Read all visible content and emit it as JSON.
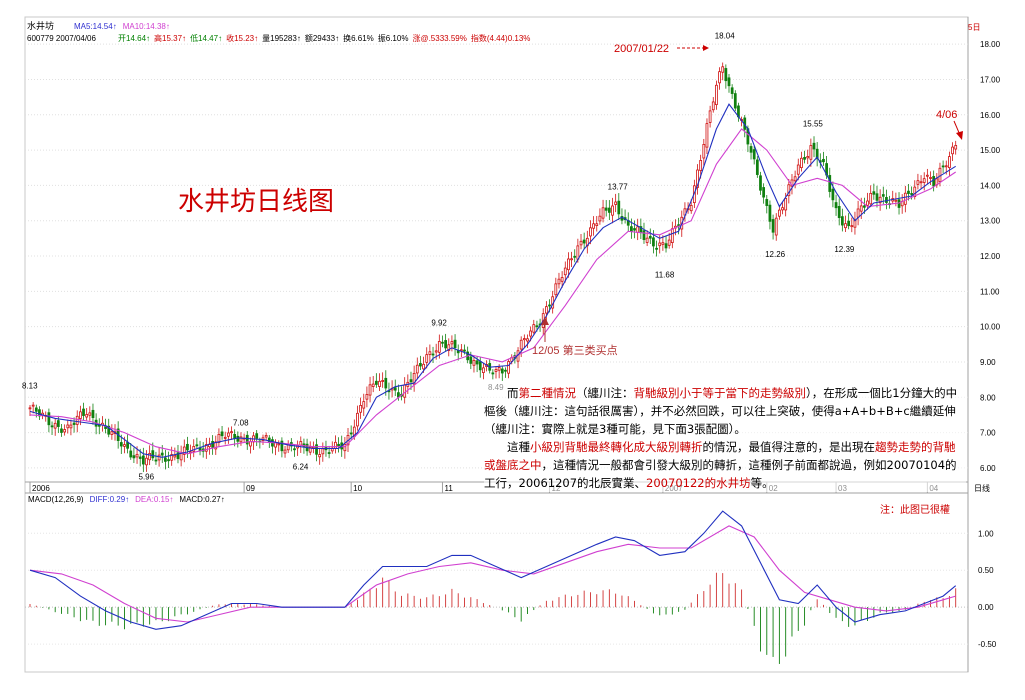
{
  "header": {
    "stock_name": "水井坊",
    "code_date": "600779 2007/04/06",
    "ma_labels": [
      {
        "text": "MA5:14.54↑",
        "color": "#3030d0"
      },
      {
        "text": "MA10:14.38↑",
        "color": "#d040d0"
      }
    ],
    "quote": [
      {
        "text": "开14.64↑",
        "color": "#008000"
      },
      {
        "text": "高15.37↑",
        "color": "#cc0000"
      },
      {
        "text": "低14.47↑",
        "color": "#008000"
      },
      {
        "text": "收15.23↑",
        "color": "#cc0000"
      },
      {
        "text": "量195283↑",
        "color": "#000000"
      },
      {
        "text": "额29433↑",
        "color": "#000000"
      },
      {
        "text": "换6.61%",
        "color": "#000000"
      },
      {
        "text": "振6.10%",
        "color": "#000000"
      },
      {
        "text": "涨@.5333.59%",
        "color": "#cc0000"
      },
      {
        "text": "指数(4.44)0.13%",
        "color": "#cc0000"
      }
    ],
    "corner_label": "5日"
  },
  "title": "水井坊日线图",
  "annotations": {
    "peak_date": "2007/01/22",
    "last_date": "4/06",
    "buy_point": "12/05 第三类买点",
    "macd_note": "注：此图已很權"
  },
  "chart_data": [
    {
      "type": "candlestick",
      "ylim": [
        5.6,
        18.4
      ],
      "yticks": [
        "6.00",
        "7.00",
        "8.00",
        "9.00",
        "10.00",
        "11.00",
        "12.00",
        "13.00",
        "14.00",
        "15.00",
        "16.00",
        "17.00",
        "18.00"
      ],
      "x_labels": [
        {
          "label": "2006",
          "day": 0
        },
        {
          "label": "09",
          "day": 68
        },
        {
          "label": "10",
          "day": 102
        },
        {
          "label": "11",
          "day": 131
        },
        {
          "label": "12",
          "day": 165
        },
        {
          "label": "2007",
          "day": 201
        },
        {
          "label": "02",
          "day": 234
        },
        {
          "label": "03",
          "day": 256
        },
        {
          "label": "04",
          "day": 285
        },
        {
          "label": "日线",
          "day": 296
        }
      ],
      "price_labels": [
        {
          "text": "8.13",
          "day": 0,
          "value": 8.13
        },
        {
          "text": "7.08",
          "day": 67,
          "value": 7.08
        },
        {
          "text": "5.96",
          "day": 37,
          "value": 5.96
        },
        {
          "text": "6.24",
          "day": 86,
          "value": 6.24
        },
        {
          "text": "9.92",
          "day": 130,
          "value": 9.92
        },
        {
          "text": "8.49",
          "day": 148,
          "value": 8.49
        },
        {
          "text": "13.77",
          "day": 186,
          "value": 13.77
        },
        {
          "text": "11.68",
          "day": 201,
          "value": 11.68
        },
        {
          "text": "18.04",
          "day": 220,
          "value": 18.04
        },
        {
          "text": "12.26",
          "day": 236,
          "value": 12.26
        },
        {
          "text": "15.55",
          "day": 248,
          "value": 15.55
        },
        {
          "text": "12.39",
          "day": 258,
          "value": 12.39
        }
      ],
      "close_path": [
        [
          0,
          7.7
        ],
        [
          6,
          7.3
        ],
        [
          12,
          7.1
        ],
        [
          18,
          7.6
        ],
        [
          24,
          7.1
        ],
        [
          30,
          6.6
        ],
        [
          36,
          6.2
        ],
        [
          42,
          6.3
        ],
        [
          48,
          6.4
        ],
        [
          55,
          6.6
        ],
        [
          62,
          6.9
        ],
        [
          68,
          6.85
        ],
        [
          75,
          6.75
        ],
        [
          82,
          6.6
        ],
        [
          88,
          6.55
        ],
        [
          94,
          6.5
        ],
        [
          100,
          6.6
        ],
        [
          103,
          7.3
        ],
        [
          106,
          8.0
        ],
        [
          110,
          8.4
        ],
        [
          114,
          8.3
        ],
        [
          118,
          8.1
        ],
        [
          122,
          8.6
        ],
        [
          126,
          9.2
        ],
        [
          130,
          9.5
        ],
        [
          134,
          9.4
        ],
        [
          138,
          9.3
        ],
        [
          142,
          8.9
        ],
        [
          146,
          8.7
        ],
        [
          150,
          8.8
        ],
        [
          154,
          9.2
        ],
        [
          158,
          9.7
        ],
        [
          162,
          10.2
        ],
        [
          166,
          10.9
        ],
        [
          170,
          11.6
        ],
        [
          174,
          12.3
        ],
        [
          178,
          12.7
        ],
        [
          182,
          13.2
        ],
        [
          186,
          13.5
        ],
        [
          190,
          12.8
        ],
        [
          194,
          12.6
        ],
        [
          198,
          12.4
        ],
        [
          202,
          12.3
        ],
        [
          206,
          12.9
        ],
        [
          210,
          13.6
        ],
        [
          214,
          15.2
        ],
        [
          218,
          16.8
        ],
        [
          220,
          17.4
        ],
        [
          224,
          16.3
        ],
        [
          228,
          15.2
        ],
        [
          232,
          14.0
        ],
        [
          236,
          12.8
        ],
        [
          240,
          13.6
        ],
        [
          244,
          14.6
        ],
        [
          248,
          15.1
        ],
        [
          252,
          14.5
        ],
        [
          256,
          13.3
        ],
        [
          260,
          12.8
        ],
        [
          264,
          13.3
        ],
        [
          268,
          13.8
        ],
        [
          272,
          13.6
        ],
        [
          276,
          13.4
        ],
        [
          280,
          13.9
        ],
        [
          284,
          14.3
        ],
        [
          287,
          14.0
        ],
        [
          290,
          14.5
        ],
        [
          294,
          15.23
        ]
      ],
      "ma5_path": [
        [
          0,
          7.6
        ],
        [
          8,
          7.4
        ],
        [
          16,
          7.3
        ],
        [
          24,
          7.2
        ],
        [
          30,
          6.8
        ],
        [
          36,
          6.4
        ],
        [
          42,
          6.3
        ],
        [
          50,
          6.45
        ],
        [
          58,
          6.7
        ],
        [
          66,
          6.85
        ],
        [
          74,
          6.8
        ],
        [
          82,
          6.65
        ],
        [
          90,
          6.55
        ],
        [
          98,
          6.55
        ],
        [
          104,
          7.0
        ],
        [
          110,
          8.0
        ],
        [
          116,
          8.3
        ],
        [
          122,
          8.4
        ],
        [
          128,
          9.1
        ],
        [
          134,
          9.4
        ],
        [
          140,
          9.2
        ],
        [
          146,
          8.85
        ],
        [
          152,
          8.9
        ],
        [
          158,
          9.5
        ],
        [
          164,
          10.3
        ],
        [
          170,
          11.3
        ],
        [
          176,
          12.2
        ],
        [
          182,
          12.8
        ],
        [
          188,
          13.1
        ],
        [
          194,
          12.8
        ],
        [
          200,
          12.5
        ],
        [
          206,
          12.7
        ],
        [
          212,
          14.0
        ],
        [
          218,
          15.6
        ],
        [
          222,
          16.3
        ],
        [
          228,
          15.6
        ],
        [
          234,
          14.2
        ],
        [
          238,
          13.4
        ],
        [
          244,
          14.2
        ],
        [
          250,
          14.8
        ],
        [
          256,
          13.8
        ],
        [
          262,
          13.0
        ],
        [
          268,
          13.5
        ],
        [
          274,
          13.6
        ],
        [
          280,
          13.7
        ],
        [
          286,
          14.1
        ],
        [
          294,
          14.54
        ]
      ],
      "ma10_path": [
        [
          0,
          7.5
        ],
        [
          10,
          7.45
        ],
        [
          20,
          7.3
        ],
        [
          30,
          7.0
        ],
        [
          40,
          6.6
        ],
        [
          50,
          6.4
        ],
        [
          60,
          6.6
        ],
        [
          70,
          6.75
        ],
        [
          80,
          6.7
        ],
        [
          90,
          6.6
        ],
        [
          100,
          6.6
        ],
        [
          110,
          7.5
        ],
        [
          120,
          8.2
        ],
        [
          130,
          8.9
        ],
        [
          140,
          9.2
        ],
        [
          150,
          9.0
        ],
        [
          160,
          9.4
        ],
        [
          170,
          10.6
        ],
        [
          180,
          11.9
        ],
        [
          190,
          12.7
        ],
        [
          200,
          12.6
        ],
        [
          210,
          13.0
        ],
        [
          218,
          14.6
        ],
        [
          226,
          15.6
        ],
        [
          234,
          15.0
        ],
        [
          242,
          14.0
        ],
        [
          250,
          14.2
        ],
        [
          258,
          14.0
        ],
        [
          266,
          13.4
        ],
        [
          276,
          13.5
        ],
        [
          286,
          13.9
        ],
        [
          294,
          14.38
        ]
      ]
    },
    {
      "type": "macd",
      "title_parts": [
        {
          "text": "MACD(12,26,9)",
          "color": "#000000"
        },
        {
          "text": "DIFF:0.29↑",
          "color": "#3030d0"
        },
        {
          "text": "DEA:0.15↑",
          "color": "#d040d0"
        },
        {
          "text": "MACD:0.27↑",
          "color": "#000000"
        }
      ],
      "ylim": [
        -0.85,
        1.45
      ],
      "yticks": [
        "-0.50",
        "0.00",
        "0.50",
        "1.00"
      ],
      "diff_path": [
        [
          0,
          0.5
        ],
        [
          8,
          0.4
        ],
        [
          16,
          0.15
        ],
        [
          24,
          -0.05
        ],
        [
          32,
          -0.2
        ],
        [
          40,
          -0.3
        ],
        [
          48,
          -0.25
        ],
        [
          56,
          -0.1
        ],
        [
          64,
          0.05
        ],
        [
          72,
          0.05
        ],
        [
          80,
          0.0
        ],
        [
          90,
          0.0
        ],
        [
          100,
          0.0
        ],
        [
          106,
          0.3
        ],
        [
          112,
          0.55
        ],
        [
          118,
          0.55
        ],
        [
          126,
          0.55
        ],
        [
          134,
          0.7
        ],
        [
          140,
          0.7
        ],
        [
          148,
          0.55
        ],
        [
          156,
          0.4
        ],
        [
          164,
          0.55
        ],
        [
          172,
          0.7
        ],
        [
          180,
          0.85
        ],
        [
          186,
          0.95
        ],
        [
          192,
          0.9
        ],
        [
          200,
          0.7
        ],
        [
          208,
          0.75
        ],
        [
          214,
          1.0
        ],
        [
          220,
          1.3
        ],
        [
          226,
          1.1
        ],
        [
          232,
          0.6
        ],
        [
          238,
          0.1
        ],
        [
          244,
          0.05
        ],
        [
          250,
          0.3
        ],
        [
          256,
          0.0
        ],
        [
          262,
          -0.2
        ],
        [
          270,
          -0.1
        ],
        [
          278,
          -0.05
        ],
        [
          284,
          0.05
        ],
        [
          290,
          0.15
        ],
        [
          294,
          0.29
        ]
      ],
      "dea_path": [
        [
          0,
          0.5
        ],
        [
          10,
          0.45
        ],
        [
          20,
          0.3
        ],
        [
          30,
          0.05
        ],
        [
          40,
          -0.15
        ],
        [
          50,
          -0.2
        ],
        [
          60,
          -0.1
        ],
        [
          70,
          0.0
        ],
        [
          80,
          0.0
        ],
        [
          90,
          0.0
        ],
        [
          100,
          0.0
        ],
        [
          110,
          0.3
        ],
        [
          120,
          0.45
        ],
        [
          130,
          0.55
        ],
        [
          140,
          0.6
        ],
        [
          150,
          0.5
        ],
        [
          160,
          0.45
        ],
        [
          170,
          0.6
        ],
        [
          180,
          0.75
        ],
        [
          190,
          0.85
        ],
        [
          200,
          0.8
        ],
        [
          210,
          0.8
        ],
        [
          222,
          1.1
        ],
        [
          230,
          0.95
        ],
        [
          238,
          0.5
        ],
        [
          246,
          0.2
        ],
        [
          254,
          0.1
        ],
        [
          262,
          0.0
        ],
        [
          272,
          -0.05
        ],
        [
          282,
          0.0
        ],
        [
          290,
          0.1
        ],
        [
          294,
          0.15
        ]
      ],
      "hist_path": [
        [
          0,
          0.05
        ],
        [
          10,
          -0.1
        ],
        [
          20,
          -0.25
        ],
        [
          30,
          -0.3
        ],
        [
          40,
          -0.25
        ],
        [
          50,
          -0.1
        ],
        [
          60,
          0.05
        ],
        [
          70,
          0.05
        ],
        [
          80,
          0.0
        ],
        [
          90,
          0.0
        ],
        [
          100,
          0.0
        ],
        [
          106,
          0.2
        ],
        [
          112,
          0.45
        ],
        [
          118,
          0.2
        ],
        [
          126,
          0.15
        ],
        [
          134,
          0.25
        ],
        [
          140,
          0.15
        ],
        [
          148,
          0.0
        ],
        [
          156,
          -0.2
        ],
        [
          164,
          0.1
        ],
        [
          172,
          0.2
        ],
        [
          180,
          0.25
        ],
        [
          186,
          0.25
        ],
        [
          192,
          0.1
        ],
        [
          200,
          -0.15
        ],
        [
          208,
          -0.05
        ],
        [
          214,
          0.3
        ],
        [
          220,
          0.55
        ],
        [
          226,
          0.25
        ],
        [
          232,
          -0.6
        ],
        [
          236,
          -0.95
        ],
        [
          240,
          -0.7
        ],
        [
          246,
          -0.25
        ],
        [
          250,
          0.15
        ],
        [
          256,
          -0.2
        ],
        [
          262,
          -0.3
        ],
        [
          270,
          -0.1
        ],
        [
          278,
          -0.05
        ],
        [
          284,
          0.1
        ],
        [
          290,
          0.15
        ],
        [
          294,
          0.27
        ]
      ]
    }
  ],
  "text_box": {
    "paragraph1": [
      {
        "t": "　　而",
        "c": "#000000"
      },
      {
        "t": "第二種情況",
        "c": "#cc0000"
      },
      {
        "t": "（纏川注：",
        "c": "#000000"
      },
      {
        "t": "背馳級別小于等于當下的走勢級別",
        "c": "#cc0000"
      },
      {
        "t": "），在形成一個比1分鐘大的中樞後（纏川注：這句話很厲害），并不必然回跌，可以往上突破，使得a+A+b+B+c繼續延伸（纏川注：實際上就是3種可能，見下面3張配圖）。",
        "c": "#000000"
      }
    ],
    "paragraph2": [
      {
        "t": "　　這種",
        "c": "#000000"
      },
      {
        "t": "小級別背馳最終轉化成大級別轉折",
        "c": "#cc0000"
      },
      {
        "t": "的情況，最值得注意的，是出現在",
        "c": "#000000"
      },
      {
        "t": "趨勢走勢的背馳或盤底之中",
        "c": "#cc0000"
      },
      {
        "t": "，這種情況一般都會引發大級別的轉折，這種例子前面都說過，例如20070104的工行，20061207的北辰實業、",
        "c": "#000000"
      },
      {
        "t": "20070122的水井坊",
        "c": "#cc0000"
      },
      {
        "t": "等。",
        "c": "#000000"
      }
    ]
  }
}
